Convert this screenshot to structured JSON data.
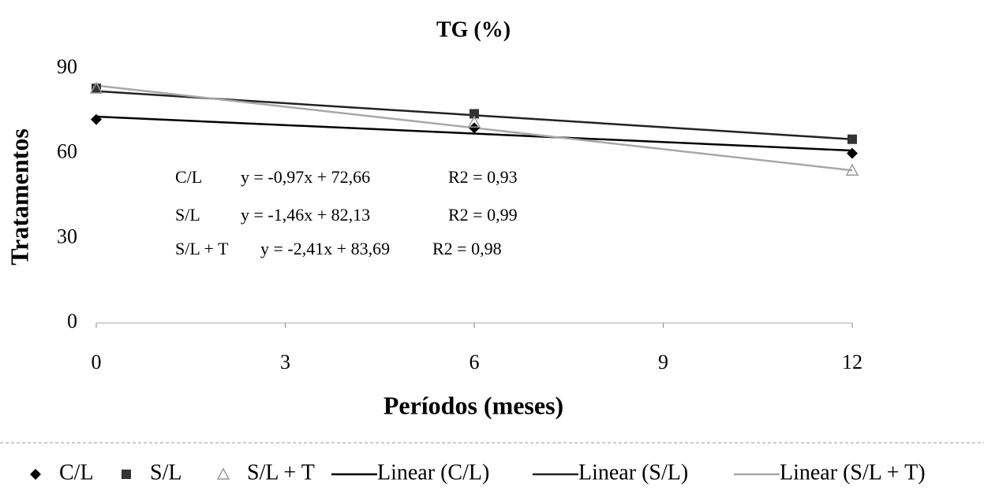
{
  "chart_data": {
    "type": "line",
    "title": "TG (%)",
    "x_label": "Períodos (meses)",
    "y_label": "Tratamentos",
    "xlim": [
      0,
      12
    ],
    "xticks": [
      0,
      3,
      6,
      9,
      12
    ],
    "ylim": [
      0,
      90
    ],
    "yticks": [
      0,
      30,
      60,
      90
    ],
    "series": [
      {
        "name": "C/L",
        "color": "#000000",
        "marker": "diamond",
        "x": [
          0,
          6,
          12
        ],
        "values": [
          72,
          69,
          60
        ]
      },
      {
        "name": "S/L",
        "color": "#333333",
        "marker": "square",
        "x": [
          0,
          6,
          12
        ],
        "values": [
          83,
          74,
          65
        ]
      },
      {
        "name": "S/L + T",
        "color": "#9a9a9a",
        "marker": "triangle",
        "x": [
          0,
          6,
          12
        ],
        "values": [
          83,
          71,
          54
        ]
      },
      {
        "name": "Linear (C/L)",
        "color": "#000000",
        "marker": "none",
        "x": [
          0,
          12
        ],
        "values": [
          73,
          61
        ]
      },
      {
        "name": "Linear (S/L)",
        "color": "#222222",
        "marker": "none",
        "x": [
          0,
          12
        ],
        "values": [
          82,
          65
        ]
      },
      {
        "name": "Linear (S/L + T)",
        "color": "#a8a8a8",
        "marker": "none",
        "x": [
          0,
          12
        ],
        "values": [
          84,
          54
        ]
      }
    ],
    "annotations": [
      {
        "label": "C/L",
        "equation": "y = -0,97x + 72,66",
        "r2": "R2 = 0,93"
      },
      {
        "label": "S/L",
        "equation": "y = -1,46x + 82,13",
        "r2": "R2 = 0,99"
      },
      {
        "label": "S/L + T",
        "equation": "y = -2,41x + 83,69",
        "r2": "R2 = 0,98"
      }
    ]
  }
}
